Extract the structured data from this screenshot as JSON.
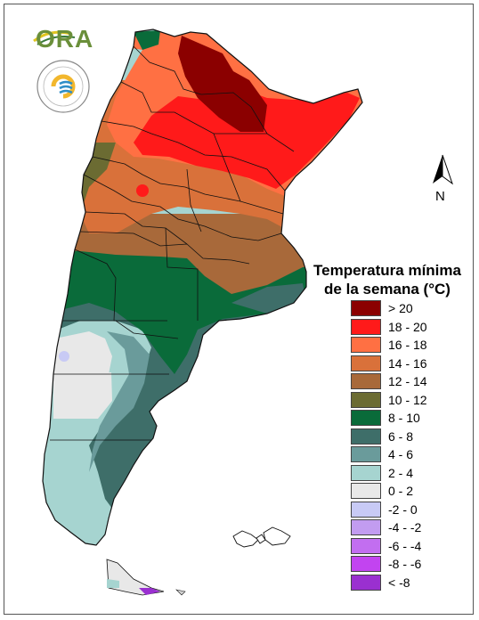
{
  "logo": {
    "text": "ORA",
    "seal_text": "SERVICIO METEOROLÓGICO NACIONAL · ARGENTINA"
  },
  "north_arrow": {
    "label": "N"
  },
  "legend": {
    "title_line1": "Temperatura mínima",
    "title_line2": "de la semana (°C)",
    "items": [
      {
        "label": "> 20",
        "color": "#8b0000"
      },
      {
        "label": "18 - 20",
        "color": "#ff1a1a"
      },
      {
        "label": "16 - 18",
        "color": "#ff7043"
      },
      {
        "label": "14 - 16",
        "color": "#d9713a"
      },
      {
        "label": "12 - 14",
        "color": "#a8693a"
      },
      {
        "label": "10 - 12",
        "color": "#6b6b32"
      },
      {
        "label": "8 - 10",
        "color": "#0a6b3a"
      },
      {
        "label": "6 - 8",
        "color": "#3e6e69"
      },
      {
        "label": "4 - 6",
        "color": "#6a9b9b"
      },
      {
        "label": "2 - 4",
        "color": "#a6d4d0"
      },
      {
        "label": "0 - 2",
        "color": "#e8e8e8"
      },
      {
        "label": "-2 - 0",
        "color": "#c8caf5"
      },
      {
        "label": "-4 - -2",
        "color": "#c29cf0"
      },
      {
        "label": "-6 - -4",
        "color": "#c26ef0"
      },
      {
        "label": "-8 - -6",
        "color": "#c244f0"
      },
      {
        "label": "< -8",
        "color": "#9a30d0"
      }
    ]
  }
}
